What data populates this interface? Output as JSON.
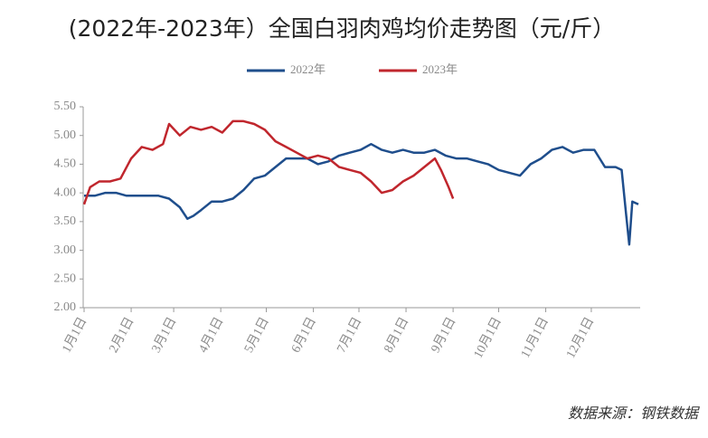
{
  "chart_data": {
    "type": "line",
    "title": "(2022年-2023年）全国白羽肉鸡均价走势图（元/斤）",
    "source": "数据来源：钢铁数据",
    "xlim": [
      0,
      365
    ],
    "xticks": [
      {
        "value": 0,
        "label": "1月1日"
      },
      {
        "value": 31,
        "label": "2月1日"
      },
      {
        "value": 59,
        "label": "3月1日"
      },
      {
        "value": 90,
        "label": "4月1日"
      },
      {
        "value": 120,
        "label": "5月1日"
      },
      {
        "value": 151,
        "label": "6月1日"
      },
      {
        "value": 181,
        "label": "7月1日"
      },
      {
        "value": 212,
        "label": "8月1日"
      },
      {
        "value": 243,
        "label": "9月1日"
      },
      {
        "value": 273,
        "label": "10月1日"
      },
      {
        "value": 304,
        "label": "11月1日"
      },
      {
        "value": 334,
        "label": "12月1日"
      }
    ],
    "ylim": [
      2.0,
      5.5
    ],
    "yticks": [
      {
        "value": 2,
        "label": "2.00"
      },
      {
        "value": 2.5,
        "label": "2.50"
      },
      {
        "value": 3,
        "label": "3.00"
      },
      {
        "value": 3.5,
        "label": "3.50"
      },
      {
        "value": 4,
        "label": "4.00"
      },
      {
        "value": 4.5,
        "label": "4.50"
      },
      {
        "value": 5,
        "label": "5.00"
      },
      {
        "value": 5.5,
        "label": "5.50"
      }
    ],
    "series": [
      {
        "name": "2022年",
        "color": "#1f4e8c",
        "x": [
          0,
          7,
          14,
          21,
          28,
          35,
          42,
          49,
          56,
          63,
          68,
          72,
          77,
          84,
          91,
          98,
          105,
          112,
          119,
          126,
          133,
          140,
          147,
          154,
          161,
          168,
          175,
          182,
          189,
          196,
          203,
          210,
          217,
          224,
          231,
          238,
          245,
          252,
          259,
          266,
          273,
          280,
          287,
          294,
          301,
          308,
          315,
          322,
          329,
          336,
          343,
          350,
          354,
          357,
          359,
          361,
          365
        ],
        "values": [
          3.95,
          3.95,
          4.0,
          4.0,
          3.95,
          3.95,
          3.95,
          3.95,
          3.9,
          3.75,
          3.55,
          3.6,
          3.7,
          3.85,
          3.85,
          3.9,
          4.05,
          4.25,
          4.3,
          4.45,
          4.6,
          4.6,
          4.6,
          4.5,
          4.55,
          4.65,
          4.7,
          4.75,
          4.85,
          4.75,
          4.7,
          4.75,
          4.7,
          4.7,
          4.75,
          4.65,
          4.6,
          4.6,
          4.55,
          4.5,
          4.4,
          4.35,
          4.3,
          4.5,
          4.6,
          4.75,
          4.8,
          4.7,
          4.75,
          4.75,
          4.45,
          4.45,
          4.4,
          3.6,
          3.1,
          3.85,
          3.8
        ]
      },
      {
        "name": "2023年",
        "color": "#c0262d",
        "x": [
          0,
          4,
          10,
          17,
          24,
          31,
          38,
          45,
          52,
          56,
          63,
          70,
          77,
          84,
          91,
          98,
          105,
          112,
          119,
          126,
          133,
          140,
          147,
          154,
          161,
          168,
          175,
          182,
          189,
          196,
          203,
          210,
          217,
          224,
          231,
          235,
          240,
          243
        ],
        "values": [
          3.8,
          4.1,
          4.2,
          4.2,
          4.25,
          4.6,
          4.8,
          4.75,
          4.85,
          5.2,
          5.0,
          5.15,
          5.1,
          5.15,
          5.05,
          5.25,
          5.25,
          5.2,
          5.1,
          4.9,
          4.8,
          4.7,
          4.6,
          4.65,
          4.6,
          4.45,
          4.4,
          4.35,
          4.2,
          4.0,
          4.05,
          4.2,
          4.3,
          4.45,
          4.6,
          4.4,
          4.1,
          3.9
        ]
      }
    ]
  }
}
